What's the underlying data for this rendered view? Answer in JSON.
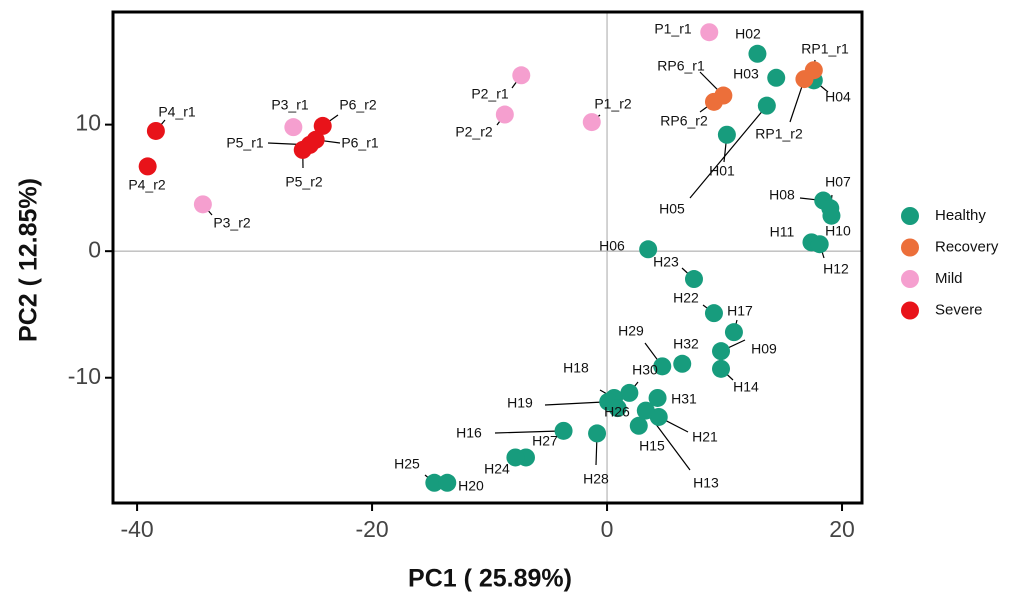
{
  "chart_data": {
    "type": "scatter",
    "x_label": "PC1 ( 25.89%)",
    "y_label": "PC2 ( 12.85%)",
    "xlim": [
      -42.05,
      21.7
    ],
    "ylim": [
      -19.9,
      18.9
    ],
    "xticks": [
      -40,
      -20,
      0,
      20
    ],
    "yticks": [
      -10,
      0,
      10
    ],
    "zero_lines": true,
    "legend": "right",
    "series": [
      {
        "name": "Healthy",
        "color": "#179c7d",
        "labels": [
          "H02",
          "H03",
          "H04",
          "H01",
          "H05",
          "H08",
          "H07",
          "H10",
          "H11",
          "H12",
          "H06",
          "H23",
          "H22",
          "H17",
          "H09",
          "H14",
          "H29",
          "H32",
          "H30",
          "H18",
          "H31",
          "H19",
          "H26",
          "H21",
          "H15",
          "H13",
          "H28",
          "H16",
          "H27",
          "H24",
          "H25",
          "H20"
        ],
        "x": [
          12.8,
          14.4,
          17.6,
          10.2,
          13.6,
          18.4,
          19.0,
          19.1,
          17.4,
          18.1,
          3.5,
          7.4,
          9.1,
          10.8,
          9.7,
          9.7,
          4.7,
          6.4,
          1.9,
          0.6,
          4.3,
          0.1,
          0.9,
          4.4,
          2.7,
          3.3,
          -0.85,
          -3.7,
          -6.9,
          -7.8,
          -14.7,
          -13.6
        ],
        "y": [
          15.6,
          13.7,
          13.5,
          9.2,
          11.5,
          4.0,
          3.4,
          2.8,
          0.7,
          0.55,
          0.15,
          -2.2,
          -4.9,
          -6.4,
          -7.9,
          -9.3,
          -9.1,
          -8.9,
          -11.2,
          -11.6,
          -11.6,
          -11.9,
          -12.4,
          -13.1,
          -13.8,
          -12.6,
          -14.4,
          -14.2,
          -16.3,
          -16.3,
          -18.3,
          -18.3
        ]
      },
      {
        "name": "Recovery",
        "color": "#ec6f3a",
        "labels": [
          "RP6_r1",
          "RP6_r2",
          "RP1_r1",
          "RP1_r2"
        ],
        "x": [
          9.9,
          9.1,
          17.6,
          16.8
        ],
        "y": [
          12.3,
          11.8,
          14.3,
          13.6
        ]
      },
      {
        "name": "Mild",
        "color": "#f59fcf",
        "labels": [
          "P1_r1",
          "P2_r1",
          "P2_r2",
          "P1_r2",
          "P3_r1",
          "P3_r2"
        ],
        "x": [
          8.7,
          -7.3,
          -8.7,
          -1.3,
          -26.7,
          -34.4
        ],
        "y": [
          17.3,
          13.9,
          10.8,
          10.2,
          9.8,
          3.7
        ]
      },
      {
        "name": "Severe",
        "color": "#e8131a",
        "labels": [
          "P4_r1",
          "P4_r2",
          "P6_r2",
          "P6_r1",
          "P5_r1",
          "P5_r2"
        ],
        "x": [
          -38.4,
          -39.1,
          -24.2,
          -24.8,
          -25.3,
          -25.9
        ],
        "y": [
          9.5,
          6.7,
          9.9,
          8.8,
          8.4,
          8.0
        ]
      }
    ]
  }
}
